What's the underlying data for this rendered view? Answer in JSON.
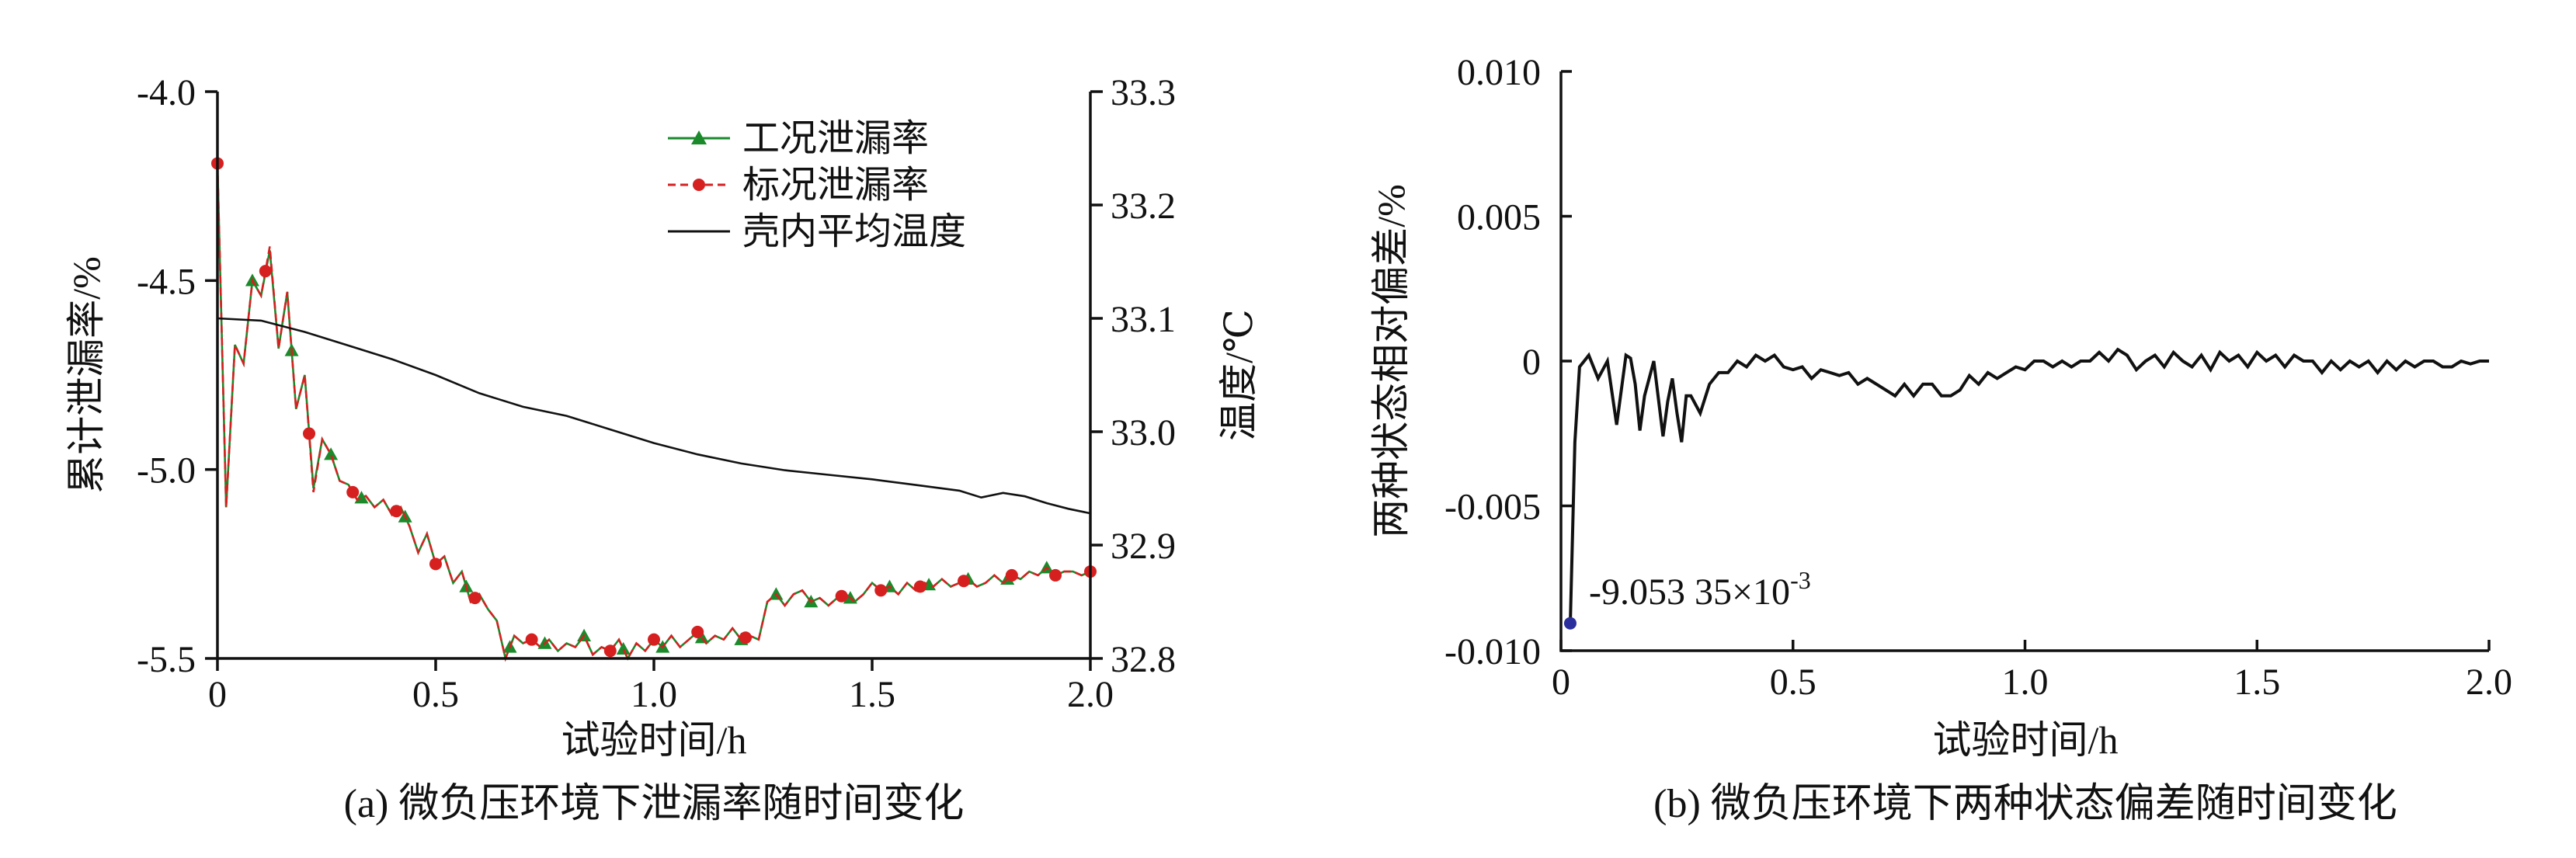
{
  "chart_data": [
    {
      "type": "line",
      "caption": "(a) 微负压环境下泄漏率随时间变化",
      "xlabel": "试验时间/h",
      "ylabel": "累计泄漏率/%",
      "ylabel_right": "温度/℃",
      "xlim": [
        0,
        2.0
      ],
      "ylim": [
        -5.5,
        -4.0
      ],
      "ylim_right": [
        32.8,
        33.3
      ],
      "x_ticks": [
        "0",
        "0.5",
        "1.0",
        "1.5",
        "2.0"
      ],
      "y_ticks": [
        "-4.0",
        "-4.5",
        "-5.0",
        "-5.5"
      ],
      "y_ticks_right": [
        "33.3",
        "33.2",
        "33.1",
        "33.0",
        "32.9",
        "32.8"
      ],
      "legend_position": "top-right",
      "series": [
        {
          "name": "工况泄漏率",
          "axis": "left",
          "color": "#1a8a2a",
          "marker": "triangle",
          "x": [
            0.0,
            0.02,
            0.04,
            0.06,
            0.08,
            0.1,
            0.12,
            0.14,
            0.16,
            0.18,
            0.2,
            0.22,
            0.24,
            0.26,
            0.28,
            0.3,
            0.32,
            0.34,
            0.36,
            0.38,
            0.4,
            0.42,
            0.44,
            0.46,
            0.48,
            0.5,
            0.52,
            0.54,
            0.56,
            0.58,
            0.6,
            0.62,
            0.64,
            0.66,
            0.68,
            0.7,
            0.72,
            0.74,
            0.76,
            0.78,
            0.8,
            0.82,
            0.84,
            0.86,
            0.88,
            0.9,
            0.92,
            0.94,
            0.96,
            0.98,
            1.0,
            1.02,
            1.04,
            1.06,
            1.08,
            1.1,
            1.12,
            1.14,
            1.16,
            1.18,
            1.2,
            1.22,
            1.24,
            1.26,
            1.28,
            1.3,
            1.32,
            1.34,
            1.36,
            1.38,
            1.4,
            1.42,
            1.44,
            1.46,
            1.48,
            1.5,
            1.52,
            1.54,
            1.56,
            1.58,
            1.6,
            1.62,
            1.64,
            1.66,
            1.68,
            1.7,
            1.72,
            1.74,
            1.76,
            1.78,
            1.8,
            1.82,
            1.84,
            1.86,
            1.88,
            1.9,
            1.92,
            1.94,
            1.96,
            1.98,
            2.0
          ],
          "values": [
            -4.19,
            -5.1,
            -4.67,
            -4.72,
            -4.5,
            -4.54,
            -4.42,
            -4.68,
            -4.53,
            -4.84,
            -4.75,
            -5.05,
            -4.92,
            -4.96,
            -5.03,
            -5.04,
            -5.08,
            -5.07,
            -5.1,
            -5.08,
            -5.12,
            -5.1,
            -5.15,
            -5.22,
            -5.17,
            -5.25,
            -5.23,
            -5.3,
            -5.27,
            -5.35,
            -5.33,
            -5.37,
            -5.4,
            -5.5,
            -5.44,
            -5.46,
            -5.45,
            -5.47,
            -5.45,
            -5.48,
            -5.46,
            -5.47,
            -5.44,
            -5.49,
            -5.47,
            -5.48,
            -5.45,
            -5.5,
            -5.46,
            -5.48,
            -5.45,
            -5.47,
            -5.44,
            -5.47,
            -5.45,
            -5.43,
            -5.46,
            -5.44,
            -5.45,
            -5.42,
            -5.45,
            -5.44,
            -5.45,
            -5.35,
            -5.33,
            -5.36,
            -5.33,
            -5.32,
            -5.35,
            -5.34,
            -5.36,
            -5.34,
            -5.33,
            -5.35,
            -5.33,
            -5.3,
            -5.32,
            -5.31,
            -5.33,
            -5.3,
            -5.32,
            -5.3,
            -5.31,
            -5.29,
            -5.31,
            -5.3,
            -5.29,
            -5.31,
            -5.3,
            -5.28,
            -5.3,
            -5.28,
            -5.29,
            -5.27,
            -5.28,
            -5.26,
            -5.28,
            -5.27,
            -5.27,
            -5.28,
            -5.27
          ],
          "marker_x": [
            0.08,
            0.17,
            0.26,
            0.33,
            0.43,
            0.57,
            0.67,
            0.75,
            0.84,
            0.93,
            1.02,
            1.11,
            1.2,
            1.28,
            1.36,
            1.45,
            1.54,
            1.63,
            1.72,
            1.81,
            1.9
          ]
        },
        {
          "name": "标况泄漏率",
          "axis": "left",
          "color": "#d62020",
          "marker": "circle",
          "x": [
            0.0,
            0.02,
            0.04,
            0.06,
            0.08,
            0.1,
            0.12,
            0.14,
            0.16,
            0.18,
            0.2,
            0.22,
            0.24,
            0.26,
            0.28,
            0.3,
            0.32,
            0.34,
            0.36,
            0.38,
            0.4,
            0.42,
            0.44,
            0.46,
            0.48,
            0.5,
            0.52,
            0.54,
            0.56,
            0.58,
            0.6,
            0.62,
            0.64,
            0.66,
            0.68,
            0.7,
            0.72,
            0.74,
            0.76,
            0.78,
            0.8,
            0.82,
            0.84,
            0.86,
            0.88,
            0.9,
            0.92,
            0.94,
            0.96,
            0.98,
            1.0,
            1.02,
            1.04,
            1.06,
            1.08,
            1.1,
            1.12,
            1.14,
            1.16,
            1.18,
            1.2,
            1.22,
            1.24,
            1.26,
            1.28,
            1.3,
            1.32,
            1.34,
            1.36,
            1.38,
            1.4,
            1.42,
            1.44,
            1.46,
            1.48,
            1.5,
            1.52,
            1.54,
            1.56,
            1.58,
            1.6,
            1.62,
            1.64,
            1.66,
            1.68,
            1.7,
            1.72,
            1.74,
            1.76,
            1.78,
            1.8,
            1.82,
            1.84,
            1.86,
            1.88,
            1.9,
            1.92,
            1.94,
            1.96,
            1.98,
            2.0
          ],
          "values": [
            -4.19,
            -5.1,
            -4.67,
            -4.72,
            -4.5,
            -4.54,
            -4.41,
            -4.68,
            -4.53,
            -4.84,
            -4.75,
            -5.06,
            -4.92,
            -4.96,
            -5.03,
            -5.04,
            -5.08,
            -5.07,
            -5.1,
            -5.08,
            -5.12,
            -5.1,
            -5.15,
            -5.22,
            -5.17,
            -5.25,
            -5.23,
            -5.3,
            -5.27,
            -5.35,
            -5.33,
            -5.37,
            -5.4,
            -5.5,
            -5.44,
            -5.46,
            -5.45,
            -5.47,
            -5.45,
            -5.48,
            -5.46,
            -5.47,
            -5.44,
            -5.49,
            -5.47,
            -5.48,
            -5.45,
            -5.5,
            -5.46,
            -5.48,
            -5.45,
            -5.47,
            -5.44,
            -5.47,
            -5.45,
            -5.43,
            -5.46,
            -5.44,
            -5.45,
            -5.42,
            -5.45,
            -5.44,
            -5.45,
            -5.35,
            -5.33,
            -5.36,
            -5.33,
            -5.32,
            -5.35,
            -5.34,
            -5.36,
            -5.34,
            -5.33,
            -5.35,
            -5.33,
            -5.3,
            -5.32,
            -5.31,
            -5.33,
            -5.3,
            -5.32,
            -5.3,
            -5.31,
            -5.29,
            -5.31,
            -5.3,
            -5.29,
            -5.31,
            -5.3,
            -5.28,
            -5.3,
            -5.28,
            -5.29,
            -5.27,
            -5.28,
            -5.26,
            -5.28,
            -5.27,
            -5.27,
            -5.28,
            -5.27
          ],
          "marker_x": [
            0.0,
            0.11,
            0.21,
            0.31,
            0.41,
            0.5,
            0.59,
            0.72,
            0.9,
            1.0,
            1.1,
            1.21,
            1.43,
            1.52,
            1.61,
            1.71,
            1.82,
            1.92,
            2.0
          ]
        },
        {
          "name": "壳内平均温度",
          "axis": "right",
          "color": "#111111",
          "marker": "none",
          "x": [
            0.0,
            0.1,
            0.2,
            0.3,
            0.4,
            0.5,
            0.6,
            0.7,
            0.8,
            0.9,
            1.0,
            1.1,
            1.2,
            1.3,
            1.4,
            1.5,
            1.6,
            1.7,
            1.75,
            1.8,
            1.85,
            1.9,
            1.95,
            2.0
          ],
          "values": [
            33.1,
            33.098,
            33.088,
            33.076,
            33.064,
            33.05,
            33.034,
            33.022,
            33.014,
            33.002,
            32.99,
            32.98,
            32.972,
            32.966,
            32.962,
            32.958,
            32.953,
            32.948,
            32.942,
            32.946,
            32.943,
            32.937,
            32.932,
            32.928
          ]
        }
      ]
    },
    {
      "type": "line",
      "caption": "(b) 微负压环境下两种状态偏差随时间变化",
      "xlabel": "试验时间/h",
      "ylabel": "两种状态相对偏差/%",
      "xlim": [
        0,
        2.0
      ],
      "ylim": [
        -0.01,
        0.01
      ],
      "x_ticks": [
        "0",
        "0.5",
        "1.0",
        "1.5",
        "2.0"
      ],
      "y_ticks": [
        "0.010",
        "0.005",
        "0",
        "-0.005",
        "-0.010"
      ],
      "annotation": {
        "text": "-9.053 35×10",
        "sup": "-3",
        "x": 0.02,
        "y": -0.00905335
      },
      "series": [
        {
          "color": "#111111",
          "x": [
            0.02,
            0.03,
            0.04,
            0.05,
            0.06,
            0.08,
            0.1,
            0.12,
            0.14,
            0.15,
            0.16,
            0.17,
            0.18,
            0.2,
            0.22,
            0.23,
            0.24,
            0.25,
            0.26,
            0.27,
            0.28,
            0.3,
            0.32,
            0.34,
            0.36,
            0.38,
            0.4,
            0.42,
            0.44,
            0.46,
            0.48,
            0.5,
            0.52,
            0.54,
            0.56,
            0.58,
            0.6,
            0.62,
            0.64,
            0.66,
            0.68,
            0.7,
            0.72,
            0.74,
            0.76,
            0.78,
            0.8,
            0.82,
            0.84,
            0.86,
            0.88,
            0.9,
            0.92,
            0.94,
            0.96,
            0.98,
            1.0,
            1.02,
            1.04,
            1.06,
            1.08,
            1.1,
            1.12,
            1.14,
            1.16,
            1.18,
            1.2,
            1.22,
            1.24,
            1.26,
            1.28,
            1.3,
            1.32,
            1.34,
            1.36,
            1.38,
            1.4,
            1.42,
            1.44,
            1.46,
            1.48,
            1.5,
            1.52,
            1.54,
            1.56,
            1.58,
            1.6,
            1.62,
            1.64,
            1.66,
            1.68,
            1.7,
            1.72,
            1.74,
            1.76,
            1.78,
            1.8,
            1.82,
            1.84,
            1.86,
            1.88,
            1.9,
            1.92,
            1.94,
            1.96,
            1.98,
            2.0
          ],
          "values": [
            -0.00905,
            -0.0028,
            -0.0002,
            0.0,
            0.0002,
            -0.0006,
            0.0,
            -0.0022,
            0.0002,
            0.0001,
            -0.0008,
            -0.0024,
            -0.0012,
            0.0,
            -0.0026,
            -0.0014,
            -0.0006,
            -0.0018,
            -0.0028,
            -0.0012,
            -0.0012,
            -0.0018,
            -0.0008,
            -0.0004,
            -0.0004,
            0.0,
            -0.0002,
            0.0002,
            0.0,
            0.0002,
            -0.0002,
            -0.0003,
            -0.0002,
            -0.0006,
            -0.0003,
            -0.0004,
            -0.0005,
            -0.0004,
            -0.0008,
            -0.0006,
            -0.0008,
            -0.001,
            -0.0012,
            -0.0008,
            -0.0012,
            -0.0008,
            -0.0008,
            -0.0012,
            -0.0012,
            -0.001,
            -0.0005,
            -0.0008,
            -0.0004,
            -0.0006,
            -0.0004,
            -0.0002,
            -0.0003,
            0.0,
            0.0,
            -0.0002,
            0.0,
            -0.0002,
            0.0,
            0.0,
            0.0003,
            0.0,
            0.0004,
            0.0002,
            -0.0003,
            0.0,
            0.0002,
            -0.0002,
            0.0003,
            0.0,
            -0.0002,
            0.0002,
            -0.0003,
            0.0003,
            0.0,
            0.0002,
            -0.0002,
            0.0003,
            0.0,
            0.0002,
            -0.0002,
            0.0002,
            0.0,
            0.0,
            -0.0004,
            0.0,
            -0.0003,
            0.0,
            -0.0002,
            0.0,
            -0.0004,
            0.0,
            -0.0003,
            0.0,
            -0.0002,
            0.0,
            0.0,
            -0.0002,
            -0.0002,
            0.0,
            -0.0001,
            0.0,
            0.0
          ]
        }
      ]
    }
  ]
}
